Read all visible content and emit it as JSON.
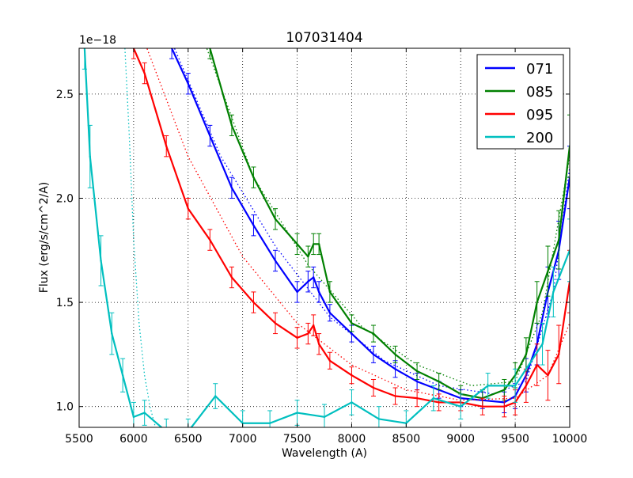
{
  "chart_data": {
    "type": "line",
    "title": "107031404",
    "xlabel": "Wavelength (A)",
    "ylabel": "Flux (erg/s/cm^2/A)",
    "y_offset_label": "1e−18",
    "xlim": [
      5500,
      10000
    ],
    "ylim": [
      0.9,
      2.72
    ],
    "grid": true,
    "legend_position": "upper right",
    "xticks": [
      5500,
      6000,
      6500,
      7000,
      7500,
      8000,
      8500,
      9000,
      9500,
      10000
    ],
    "xtick_labels": [
      "5500",
      "6000",
      "6500",
      "7000",
      "7500",
      "8000",
      "8500",
      "9000",
      "9500",
      "10000"
    ],
    "yticks": [
      1.0,
      1.5,
      2.0,
      2.5
    ],
    "ytick_labels": [
      "1.0",
      "1.5",
      "2.0",
      "2.5"
    ],
    "series": [
      {
        "name": "071",
        "color": "#0000ff",
        "x": [
          6350,
          6500,
          6700,
          6900,
          7100,
          7300,
          7500,
          7600,
          7650,
          7700,
          7800,
          8000,
          8200,
          8400,
          8600,
          8800,
          9000,
          9200,
          9400,
          9500,
          9600,
          9700,
          9800,
          9900,
          10000
        ],
        "y": [
          2.72,
          2.55,
          2.3,
          2.05,
          1.87,
          1.7,
          1.55,
          1.6,
          1.62,
          1.55,
          1.45,
          1.35,
          1.25,
          1.18,
          1.12,
          1.08,
          1.04,
          1.03,
          1.02,
          1.05,
          1.15,
          1.3,
          1.55,
          1.75,
          2.1
        ],
        "err": [
          0.05,
          0.05,
          0.05,
          0.05,
          0.05,
          0.05,
          0.05,
          0.05,
          0.05,
          0.05,
          0.04,
          0.04,
          0.04,
          0.04,
          0.04,
          0.04,
          0.04,
          0.04,
          0.05,
          0.06,
          0.08,
          0.1,
          0.12,
          0.14,
          0.15
        ],
        "model_x": [
          6350,
          6800,
          7300,
          7800,
          8300,
          8800,
          9300,
          9600,
          9850,
          10000
        ],
        "model_y": [
          2.75,
          2.2,
          1.77,
          1.43,
          1.22,
          1.1,
          1.06,
          1.12,
          1.55,
          2.15
        ]
      },
      {
        "name": "085",
        "color": "#008000",
        "x": [
          6700,
          6900,
          7100,
          7300,
          7500,
          7600,
          7650,
          7700,
          7800,
          8000,
          8200,
          8400,
          8600,
          8800,
          9000,
          9200,
          9400,
          9500,
          9600,
          9700,
          9800,
          9900,
          10000
        ],
        "y": [
          2.72,
          2.35,
          2.1,
          1.9,
          1.78,
          1.72,
          1.78,
          1.78,
          1.55,
          1.4,
          1.35,
          1.25,
          1.17,
          1.12,
          1.06,
          1.04,
          1.08,
          1.15,
          1.25,
          1.5,
          1.65,
          1.8,
          2.25
        ],
        "err": [
          0.05,
          0.05,
          0.05,
          0.05,
          0.05,
          0.05,
          0.05,
          0.05,
          0.05,
          0.04,
          0.04,
          0.04,
          0.04,
          0.04,
          0.04,
          0.04,
          0.05,
          0.06,
          0.08,
          0.1,
          0.12,
          0.14,
          0.15
        ],
        "model_x": [
          6650,
          7100,
          7600,
          8100,
          8600,
          9100,
          9500,
          9750,
          10000
        ],
        "model_y": [
          2.75,
          2.1,
          1.68,
          1.38,
          1.2,
          1.1,
          1.12,
          1.45,
          2.2
        ]
      },
      {
        "name": "095",
        "color": "#ff0000",
        "x": [
          6000,
          6100,
          6300,
          6500,
          6700,
          6900,
          7100,
          7300,
          7500,
          7600,
          7650,
          7700,
          7800,
          8000,
          8200,
          8400,
          8600,
          8800,
          9000,
          9200,
          9400,
          9500,
          9600,
          9700,
          9800,
          9900,
          10000
        ],
        "y": [
          2.72,
          2.6,
          2.25,
          1.95,
          1.8,
          1.62,
          1.5,
          1.4,
          1.33,
          1.35,
          1.39,
          1.3,
          1.22,
          1.15,
          1.09,
          1.05,
          1.04,
          1.02,
          1.02,
          1.0,
          1.0,
          1.02,
          1.1,
          1.2,
          1.15,
          1.25,
          1.6
        ],
        "err": [
          0.05,
          0.05,
          0.05,
          0.05,
          0.05,
          0.05,
          0.05,
          0.05,
          0.05,
          0.05,
          0.05,
          0.05,
          0.04,
          0.04,
          0.04,
          0.04,
          0.04,
          0.04,
          0.04,
          0.04,
          0.05,
          0.06,
          0.08,
          0.1,
          0.12,
          0.14,
          0.15
        ],
        "model_x": [
          6100,
          6500,
          7000,
          7500,
          8000,
          8500,
          9000,
          9500,
          9800,
          10000
        ],
        "model_y": [
          2.75,
          2.2,
          1.72,
          1.4,
          1.2,
          1.08,
          1.03,
          1.04,
          1.15,
          1.4
        ]
      },
      {
        "name": "200",
        "color": "#00bfbf",
        "x": [
          5550,
          5600,
          5700,
          5800,
          5900,
          6000,
          6100,
          6300,
          6500,
          6750,
          7000,
          7250,
          7500,
          7750,
          8000,
          8250,
          8500,
          8750,
          9000,
          9250,
          9500,
          9750,
          9850,
          10000
        ],
        "y": [
          2.72,
          2.2,
          1.7,
          1.35,
          1.15,
          0.95,
          0.97,
          0.88,
          0.88,
          1.05,
          0.92,
          0.92,
          0.97,
          0.95,
          1.02,
          0.94,
          0.92,
          1.04,
          1.0,
          1.1,
          1.1,
          1.3,
          1.55,
          1.75
        ],
        "err": [
          0.1,
          0.15,
          0.12,
          0.1,
          0.08,
          0.07,
          0.06,
          0.06,
          0.06,
          0.06,
          0.06,
          0.06,
          0.06,
          0.06,
          0.06,
          0.06,
          0.06,
          0.06,
          0.06,
          0.06,
          0.08,
          0.1,
          0.12,
          0.15
        ],
        "model_x": [
          5920,
          5960,
          6000,
          6050,
          6100,
          6150,
          6200
        ],
        "model_y": [
          2.72,
          2.3,
          1.8,
          1.4,
          1.15,
          1.0,
          0.9
        ]
      }
    ]
  }
}
